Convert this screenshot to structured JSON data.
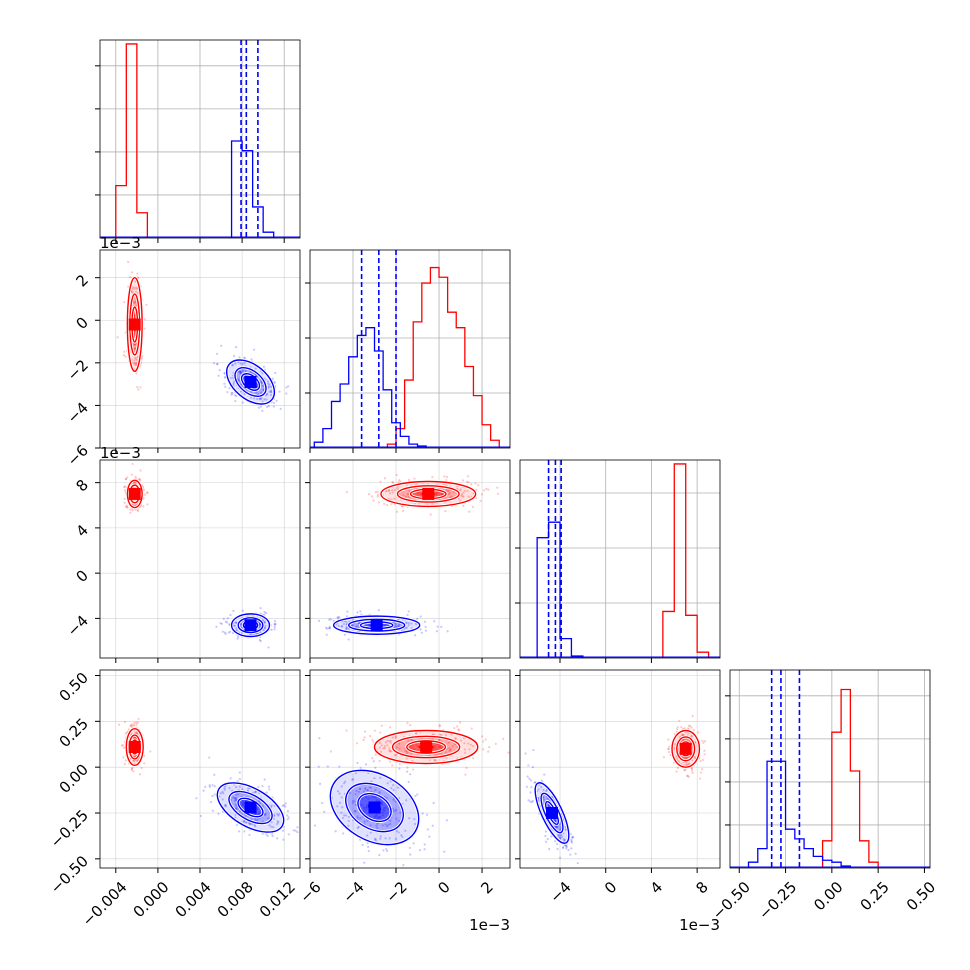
{
  "chart_data": {
    "type": "corner",
    "grid": true,
    "series": [
      {
        "color": "#ff0000"
      },
      {
        "color": "#0000ff"
      }
    ],
    "parameters": [
      {
        "range": [
          -0.0055,
          0.0135
        ],
        "ticks": [
          "−0.004",
          "0.000",
          "0.004",
          "0.008",
          "0.012"
        ],
        "tick_values": [
          -0.004,
          0.0,
          0.004,
          0.008,
          0.012
        ],
        "offset_label": "",
        "diag_yticks": 4
      },
      {
        "range": [
          -6.0,
          3.3
        ],
        "ticks": [
          "−6",
          "−4",
          "−2",
          "0",
          "2"
        ],
        "tick_values": [
          -6,
          -4,
          -2,
          0,
          2
        ],
        "offset_label": "1e−3",
        "diag_yticks": 3
      },
      {
        "range": [
          -7.5,
          10.0
        ],
        "ticks": [
          "−4",
          "0",
          "4",
          "8"
        ],
        "tick_values": [
          -4,
          0,
          4,
          8
        ],
        "offset_label": "1e−3",
        "diag_yticks": 3
      },
      {
        "range": [
          -0.55,
          0.53
        ],
        "ticks": [
          "−0.50",
          "−0.25",
          "0.00",
          "0.25",
          "0.50"
        ],
        "tick_values": [
          -0.5,
          -0.25,
          0.0,
          0.25,
          0.5
        ],
        "offset_label": "",
        "diag_yticks": 4
      }
    ],
    "histograms": [
      {
        "red": {
          "x": [
            -0.0035,
            -0.0025,
            -0.0015
          ],
          "y": [
            0.27,
            1.0,
            0.13
          ]
        },
        "blue": {
          "x": [
            0.0075,
            0.0085,
            0.0095,
            0.0105
          ],
          "y": [
            0.5,
            0.45,
            0.16,
            0.03
          ]
        },
        "blue_quantiles": [
          0.0079,
          0.0084,
          0.0095
        ]
      },
      {
        "red": {
          "x": [
            -2.2,
            -1.8,
            -1.4,
            -1.0,
            -0.6,
            -0.2,
            0.2,
            0.6,
            1.0,
            1.4,
            1.8,
            2.2,
            2.6
          ],
          "y": [
            0.02,
            0.1,
            0.35,
            0.65,
            0.85,
            0.93,
            0.88,
            0.7,
            0.62,
            0.42,
            0.27,
            0.12,
            0.04
          ]
        },
        "blue": {
          "x": [
            -5.6,
            -5.2,
            -4.8,
            -4.4,
            -4.0,
            -3.6,
            -3.2,
            -2.8,
            -2.4,
            -2.0,
            -1.6,
            -1.2,
            -0.8
          ],
          "y": [
            0.03,
            0.1,
            0.24,
            0.33,
            0.47,
            0.58,
            0.62,
            0.5,
            0.3,
            0.13,
            0.06,
            0.02,
            0.01
          ]
        },
        "blue_quantiles": [
          -3.6,
          -2.8,
          -2.0
        ]
      },
      {
        "red": {
          "x": [
            5.5,
            6.5,
            7.5,
            8.5
          ],
          "y": [
            0.24,
            1.0,
            0.22,
            0.03
          ]
        },
        "blue": {
          "x": [
            -5.5,
            -4.5,
            -3.5,
            -2.5
          ],
          "y": [
            0.62,
            0.7,
            0.1,
            0.01
          ]
        },
        "blue_quantiles": [
          -5.0,
          -4.4,
          -3.9
        ]
      },
      {
        "red": {
          "x": [
            -0.025,
            0.025,
            0.075,
            0.125,
            0.175,
            0.225
          ],
          "y": [
            0.14,
            0.7,
            0.92,
            0.5,
            0.14,
            0.03
          ]
        },
        "blue": {
          "x": [
            -0.425,
            -0.375,
            -0.325,
            -0.275,
            -0.225,
            -0.175,
            -0.125,
            -0.075,
            -0.025,
            0.025,
            0.075
          ],
          "y": [
            0.03,
            0.1,
            0.55,
            0.55,
            0.2,
            0.15,
            0.1,
            0.06,
            0.04,
            0.03,
            0.01
          ]
        },
        "blue_quantiles": [
          -0.325,
          -0.275,
          -0.175
        ]
      }
    ],
    "clusters": {
      "red": [
        {
          "xi": 0,
          "yi": 1,
          "cx": -0.0022,
          "cy": -0.2,
          "sx": 0.00035,
          "sy": 1.1,
          "rot": 0
        },
        {
          "xi": 0,
          "yi": 2,
          "cx": -0.0022,
          "cy": 7.0,
          "sx": 0.00035,
          "sy": 0.6,
          "rot": 0
        },
        {
          "xi": 1,
          "yi": 2,
          "cx": -0.5,
          "cy": 7.0,
          "sx": 1.1,
          "sy": 0.55,
          "rot": 0
        },
        {
          "xi": 0,
          "yi": 3,
          "cx": -0.0022,
          "cy": 0.11,
          "sx": 0.0004,
          "sy": 0.05,
          "rot": 0
        },
        {
          "xi": 1,
          "yi": 3,
          "cx": -0.6,
          "cy": 0.11,
          "sx": 1.2,
          "sy": 0.045,
          "rot": 0
        },
        {
          "xi": 2,
          "yi": 3,
          "cx": 7.0,
          "cy": 0.1,
          "sx": 0.6,
          "sy": 0.05,
          "rot": 0
        }
      ],
      "blue": [
        {
          "xi": 0,
          "yi": 1,
          "cx": 0.0088,
          "cy": -2.9,
          "sx": 0.0008,
          "sy": 0.65,
          "rot": -50
        },
        {
          "xi": 0,
          "yi": 2,
          "cx": 0.0088,
          "cy": -4.6,
          "sx": 0.0009,
          "sy": 0.5,
          "rot": 0
        },
        {
          "xi": 1,
          "yi": 2,
          "cx": -2.9,
          "cy": -4.6,
          "sx": 1.0,
          "sy": 0.4,
          "rot": 0
        },
        {
          "xi": 0,
          "yi": 3,
          "cx": 0.0088,
          "cy": -0.22,
          "sx": 0.0009,
          "sy": 0.1,
          "rot": -60
        },
        {
          "xi": 1,
          "yi": 3,
          "cx": -3.0,
          "cy": -0.22,
          "sx": 1.1,
          "sy": 0.09,
          "rot": 30
        },
        {
          "xi": 2,
          "yi": 3,
          "cx": -4.7,
          "cy": -0.25,
          "sx": 0.45,
          "sy": 0.09,
          "rot": -25
        }
      ]
    }
  }
}
